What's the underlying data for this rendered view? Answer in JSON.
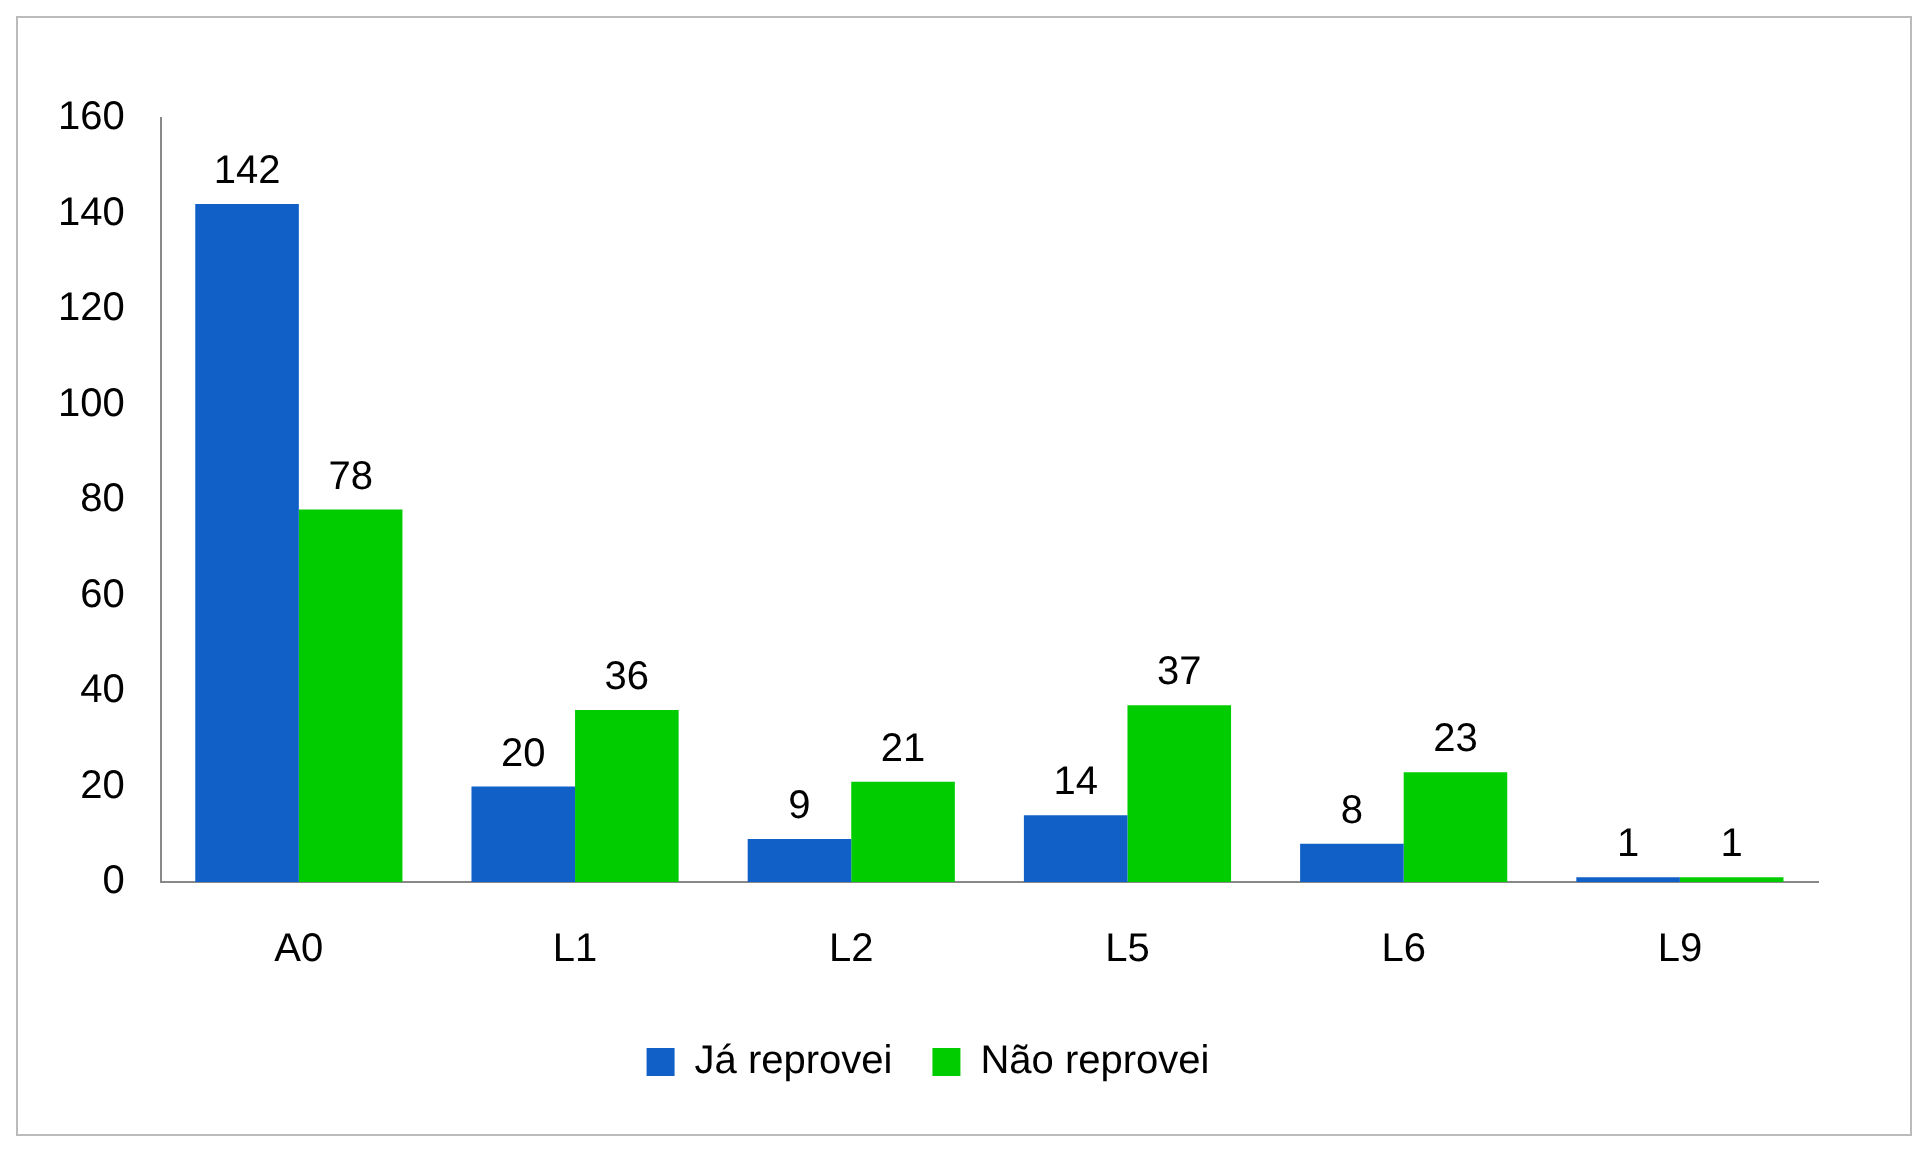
{
  "chart_data": {
    "type": "bar",
    "categories": [
      "A0",
      "L1",
      "L2",
      "L5",
      "L6",
      "L9"
    ],
    "series": [
      {
        "name": "Já reprovei",
        "color": "#1060c8",
        "values": [
          142,
          20,
          9,
          14,
          8,
          1
        ]
      },
      {
        "name": "Não reprovei",
        "color": "#00cc00",
        "values": [
          78,
          36,
          21,
          37,
          23,
          1
        ]
      }
    ],
    "ylim": [
      0,
      160
    ],
    "yticks": [
      0,
      20,
      40,
      60,
      80,
      100,
      120,
      140,
      160
    ],
    "grid": false,
    "legend": "bottom",
    "data_labels": true
  }
}
